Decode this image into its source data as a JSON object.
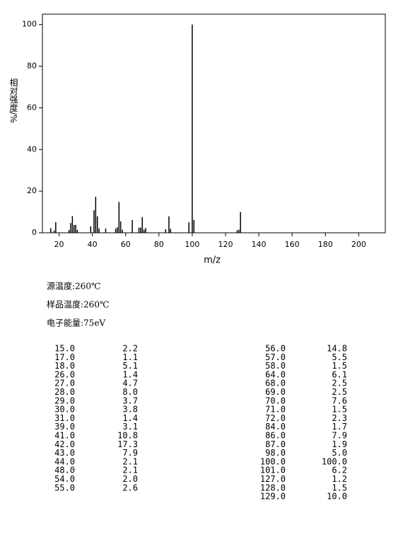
{
  "chart_data": {
    "type": "bar",
    "x_label": "m/z",
    "y_label": "相对强度/%",
    "x": [
      15,
      17,
      18,
      26,
      27,
      28,
      29,
      30,
      31,
      39,
      41,
      42,
      43,
      44,
      48,
      54,
      55,
      56,
      57,
      58,
      64,
      68,
      69,
      70,
      71,
      72,
      84,
      86,
      87,
      98,
      100,
      101,
      127,
      128,
      129
    ],
    "values": [
      2.2,
      1.1,
      5.1,
      1.4,
      4.7,
      8.0,
      3.7,
      3.8,
      1.4,
      3.1,
      10.8,
      17.3,
      7.9,
      2.1,
      2.1,
      2.0,
      2.6,
      14.8,
      5.5,
      1.5,
      6.1,
      2.5,
      2.5,
      7.6,
      1.5,
      2.3,
      1.7,
      7.9,
      1.9,
      5.0,
      100.0,
      6.2,
      1.2,
      1.5,
      10.0
    ],
    "color": "#000000",
    "xlim": [
      10,
      216
    ],
    "xticks": [
      20,
      40,
      60,
      80,
      100,
      120,
      140,
      160,
      180,
      200
    ],
    "ylim": [
      0,
      105
    ],
    "yticks": [
      0,
      20,
      40,
      60,
      80,
      100
    ]
  },
  "info": [
    "源温度:260℃",
    "样品温度:260℃",
    "电子能量:75eV"
  ],
  "table": {
    "rows": [
      [
        "15.0",
        "2.2"
      ],
      [
        "17.0",
        "1.1"
      ],
      [
        "18.0",
        "5.1"
      ],
      [
        "26.0",
        "1.4"
      ],
      [
        "27.0",
        "4.7"
      ],
      [
        "28.0",
        "8.0"
      ],
      [
        "29.0",
        "3.7"
      ],
      [
        "30.0",
        "3.8"
      ],
      [
        "31.0",
        "1.4"
      ],
      [
        "39.0",
        "3.1"
      ],
      [
        "41.0",
        "10.8"
      ],
      [
        "42.0",
        "17.3"
      ],
      [
        "43.0",
        "7.9"
      ],
      [
        "44.0",
        "2.1"
      ],
      [
        "48.0",
        "2.1"
      ],
      [
        "54.0",
        "2.0"
      ],
      [
        "55.0",
        "2.6"
      ],
      [
        "56.0",
        "14.8"
      ],
      [
        "57.0",
        "5.5"
      ],
      [
        "58.0",
        "1.5"
      ],
      [
        "64.0",
        "6.1"
      ],
      [
        "68.0",
        "2.5"
      ],
      [
        "69.0",
        "2.5"
      ],
      [
        "70.0",
        "7.6"
      ],
      [
        "71.0",
        "1.5"
      ],
      [
        "72.0",
        "2.3"
      ],
      [
        "84.0",
        "1.7"
      ],
      [
        "86.0",
        "7.9"
      ],
      [
        "87.0",
        "1.9"
      ],
      [
        "98.0",
        "5.0"
      ],
      [
        "100.0",
        "100.0"
      ],
      [
        "101.0",
        "6.2"
      ],
      [
        "127.0",
        "1.2"
      ],
      [
        "128.0",
        "1.5"
      ],
      [
        "129.0",
        "10.0"
      ]
    ]
  }
}
